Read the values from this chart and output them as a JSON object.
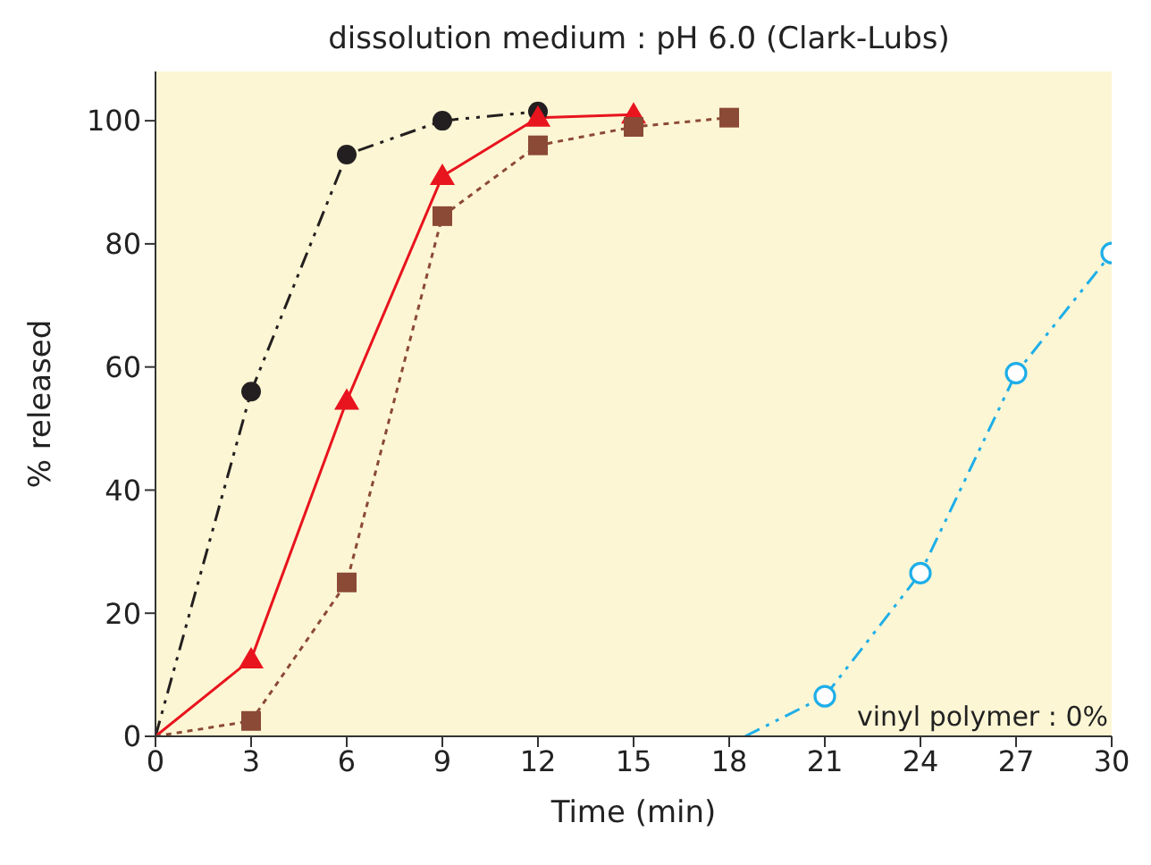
{
  "chart_data": {
    "type": "line",
    "title": "dissolution medium : pH 6.0 (Clark-Lubs)",
    "xlabel": "Time (min)",
    "ylabel": "% released",
    "series": [
      {
        "color": "#231f20",
        "marker": "circle",
        "line_style": "dashed",
        "x": [
          0,
          3,
          6,
          9,
          12
        ],
        "values": [
          0,
          56,
          94.5,
          100,
          101.5
        ]
      },
      {
        "color": "#e8141e",
        "marker": "triangle",
        "line_style": "solid",
        "x": [
          0,
          3,
          6,
          9,
          12,
          15
        ],
        "values": [
          0,
          12.5,
          54.5,
          91,
          100.5,
          101
        ]
      },
      {
        "color": "#8b4a36",
        "marker": "square",
        "line_style": "dotted",
        "x": [
          0,
          3,
          6,
          9,
          12,
          15,
          18
        ],
        "values": [
          0,
          2.5,
          25,
          84.5,
          96,
          99,
          100.5
        ]
      },
      {
        "color": "#1eaee8",
        "marker": "circle_open",
        "line_style": "dashed",
        "x": [
          18.5,
          21,
          24,
          27,
          30
        ],
        "values": [
          0,
          6.5,
          26.5,
          59,
          78.5
        ]
      }
    ],
    "annotations": [
      "vinyl polymer : 0%"
    ],
    "xlim": [
      0,
      30
    ],
    "xticks": [
      0,
      3,
      6,
      9,
      12,
      15,
      18,
      21,
      24,
      27,
      30
    ],
    "ylim": [
      0,
      108
    ],
    "yticks": [
      0,
      20,
      40,
      60,
      80,
      100
    ]
  }
}
